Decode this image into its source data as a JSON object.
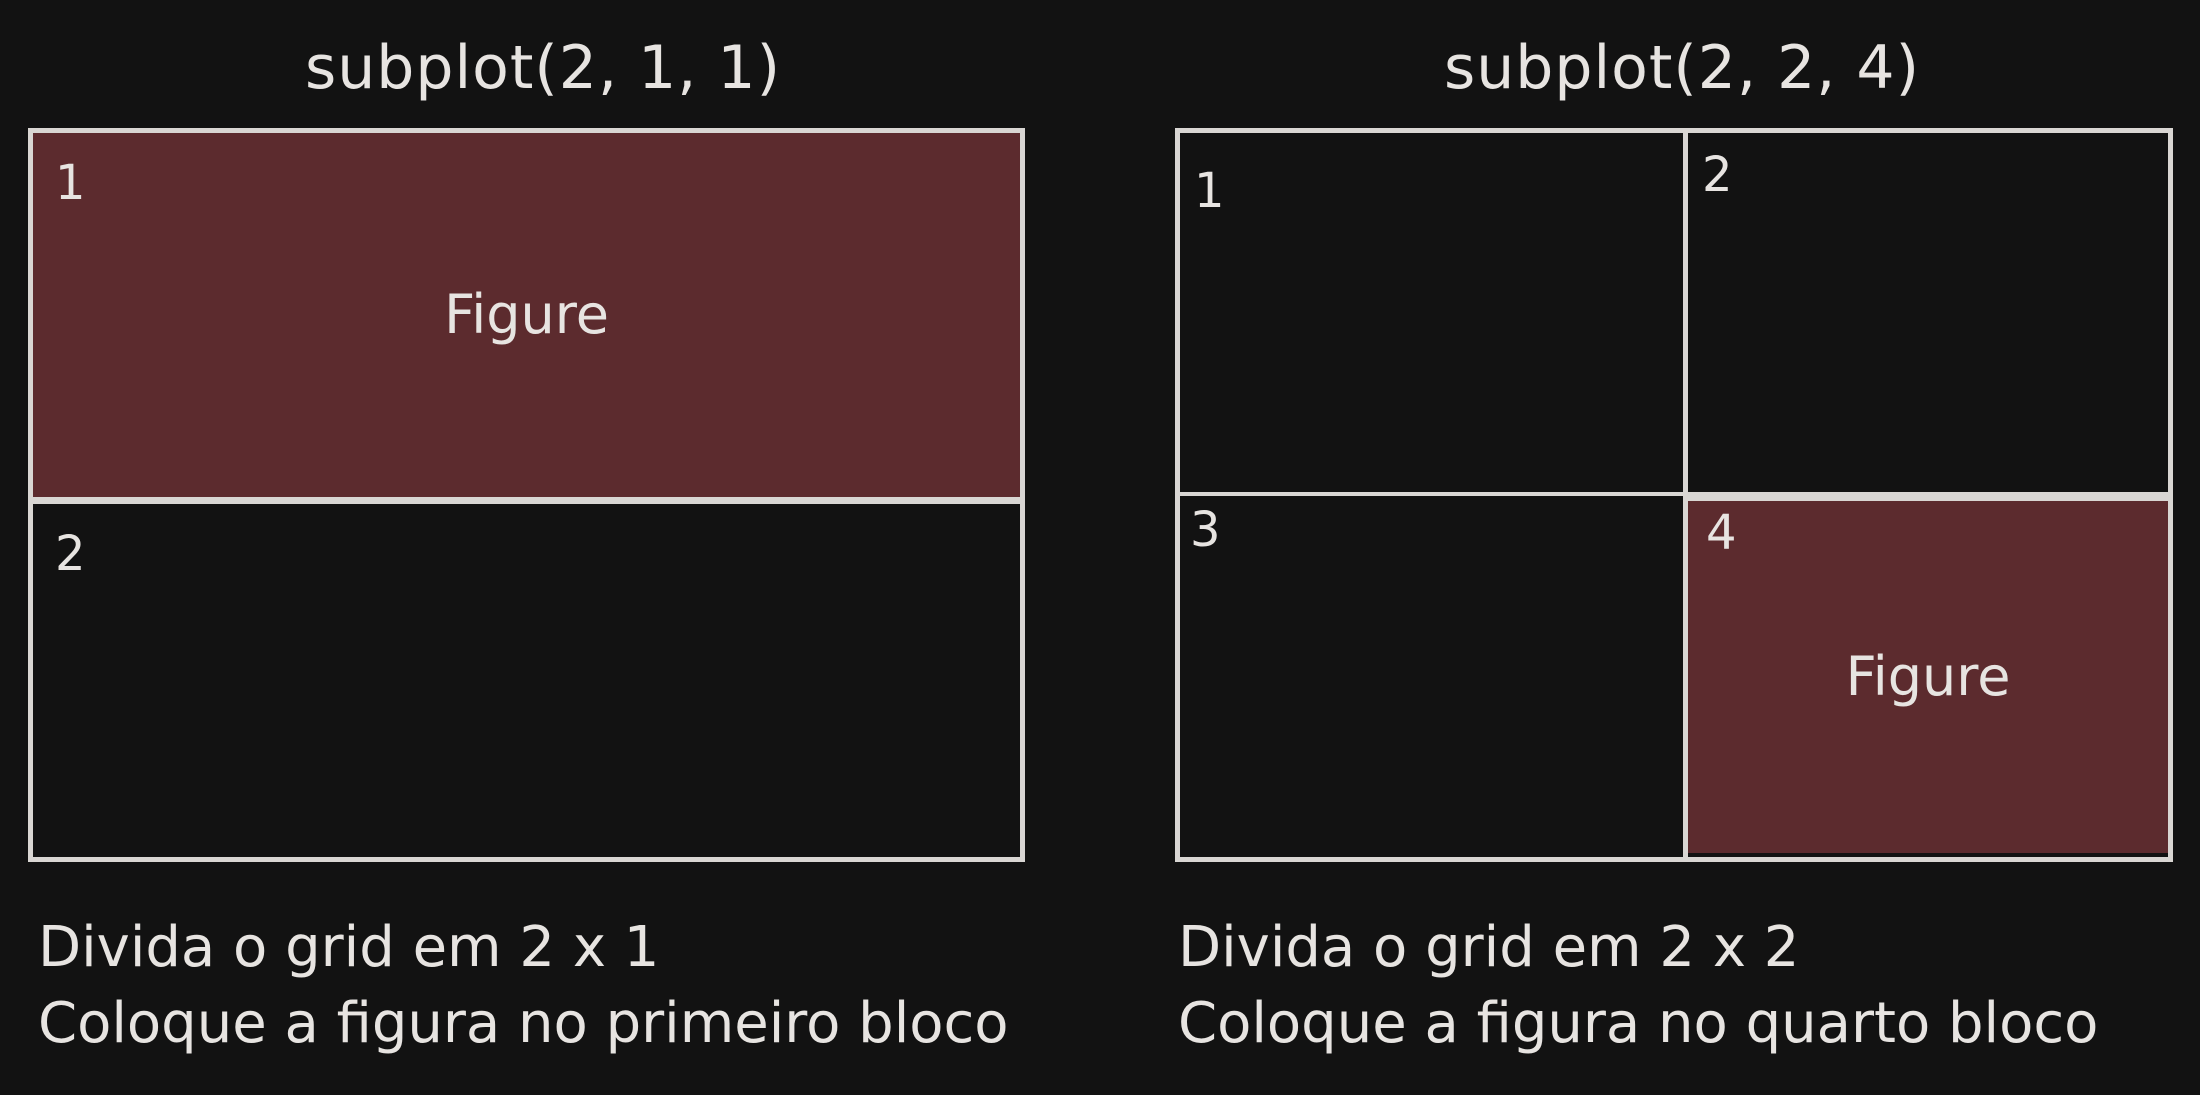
{
  "left": {
    "title": "subplot(2, 1, 1)",
    "cells": [
      {
        "number": "1",
        "caption": "Figure"
      },
      {
        "number": "2"
      }
    ],
    "description": [
      "Divida o grid em 2 x 1",
      "Coloque a figura no primeiro bloco"
    ]
  },
  "right": {
    "title": "subplot(2, 2, 4)",
    "cells": [
      {
        "number": "1"
      },
      {
        "number": "2"
      },
      {
        "number": "3"
      },
      {
        "number": "4",
        "caption": "Figure"
      }
    ],
    "description": [
      "Divida o grid em 2 x 2",
      "Coloque a figura no quarto bloco"
    ]
  },
  "colors": {
    "background": "#121212",
    "highlight": "#5c2b2e",
    "line": "#d9d6d3",
    "text": "#e7e4e1"
  }
}
